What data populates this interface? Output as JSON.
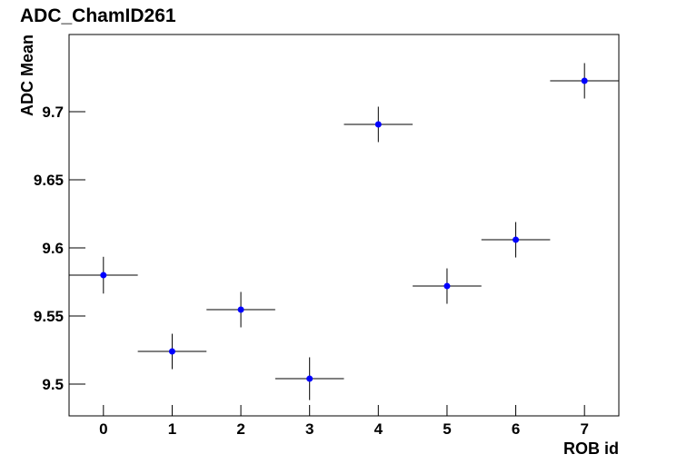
{
  "chart_data": {
    "type": "scatter",
    "title": "ADC_ChamID261",
    "x_label": "ROB id",
    "y_label": "ADC Mean",
    "series": [
      {
        "color": "#0000ff",
        "x": [
          0,
          1,
          2,
          3,
          4,
          5,
          6,
          7
        ],
        "values": [
          9.58,
          9.524,
          9.5547,
          9.504,
          9.6907,
          9.572,
          9.606,
          9.7227
        ],
        "errors": [
          0.0135,
          0.013,
          0.013,
          0.0157,
          0.013,
          0.013,
          0.013,
          0.013
        ],
        "xerr": [
          0.5,
          0.5,
          0.5,
          0.5,
          0.5,
          0.5,
          0.5,
          0.5
        ]
      }
    ],
    "xlim": [
      -0.5,
      7.5
    ],
    "ylim": [
      9.4767,
      9.7567
    ],
    "xticks": [
      0,
      1,
      2,
      3,
      4,
      5,
      6,
      7
    ],
    "yticks": [
      9.5,
      9.55,
      9.6,
      9.65,
      9.7
    ]
  }
}
